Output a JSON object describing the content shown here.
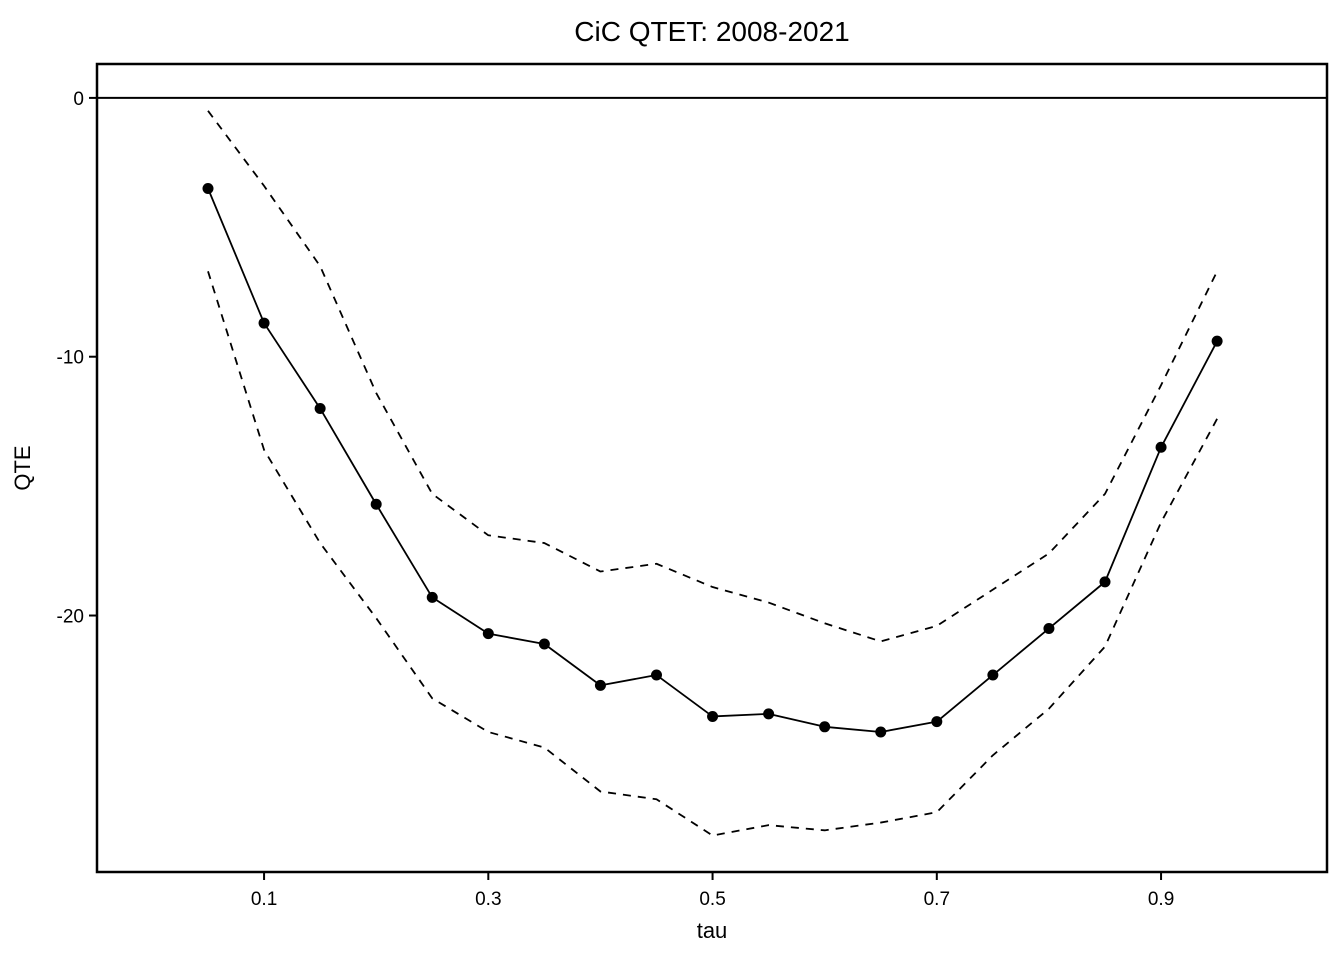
{
  "title": "CiC QTET: 2008-2021",
  "axes": {
    "x": {
      "label": "tau",
      "ticks": [
        0.1,
        0.3,
        0.5,
        0.7,
        0.9
      ],
      "tick_labels": [
        "0.1",
        "0.3",
        "0.5",
        "0.7",
        "0.9"
      ],
      "range": [
        -0.049,
        1.048
      ]
    },
    "y": {
      "label": "QTE",
      "ticks": [
        0,
        -10,
        -20
      ],
      "tick_labels": [
        "0",
        "-10",
        "-20"
      ],
      "range": [
        -29.91,
        1.31
      ]
    }
  },
  "colors": {
    "foreground": "#000000",
    "background": "#FFFFFF"
  },
  "chart_data": {
    "type": "line",
    "title": "CiC QTET: 2008-2021",
    "xlabel": "tau",
    "ylabel": "QTE",
    "xlim": [
      -0.049,
      1.048
    ],
    "ylim": [
      -29.91,
      1.31
    ],
    "grid": false,
    "legend": "none",
    "reference_line_y": 0,
    "x": [
      0.05,
      0.1,
      0.15,
      0.2,
      0.25,
      0.3,
      0.35,
      0.4,
      0.45,
      0.5,
      0.55,
      0.6,
      0.65,
      0.7,
      0.75,
      0.8,
      0.85,
      0.9,
      0.95
    ],
    "series": [
      {
        "name": "qte-estimate",
        "style": "solid",
        "markers": true,
        "values": [
          -3.5,
          -8.7,
          -12.0,
          -15.7,
          -19.3,
          -20.7,
          -21.1,
          -22.7,
          -22.3,
          -23.9,
          -23.8,
          -24.3,
          -24.5,
          -24.1,
          -22.3,
          -20.5,
          -18.7,
          -13.5,
          -9.4
        ]
      },
      {
        "name": "upper-band",
        "style": "dashed",
        "markers": false,
        "values": [
          -0.5,
          -3.4,
          -6.5,
          -11.4,
          -15.3,
          -16.9,
          -17.2,
          -18.3,
          -18.0,
          -18.9,
          -19.5,
          -20.3,
          -21.0,
          -20.4,
          -19.0,
          -17.6,
          -15.3,
          -11.1,
          -6.7
        ]
      },
      {
        "name": "lower-band",
        "style": "dashed",
        "markers": false,
        "values": [
          -6.7,
          -13.6,
          -17.2,
          -20.1,
          -23.2,
          -24.5,
          -25.1,
          -26.8,
          -27.1,
          -28.5,
          -28.1,
          -28.3,
          -28.0,
          -27.6,
          -25.4,
          -23.6,
          -21.2,
          -16.4,
          -12.4
        ]
      }
    ]
  }
}
